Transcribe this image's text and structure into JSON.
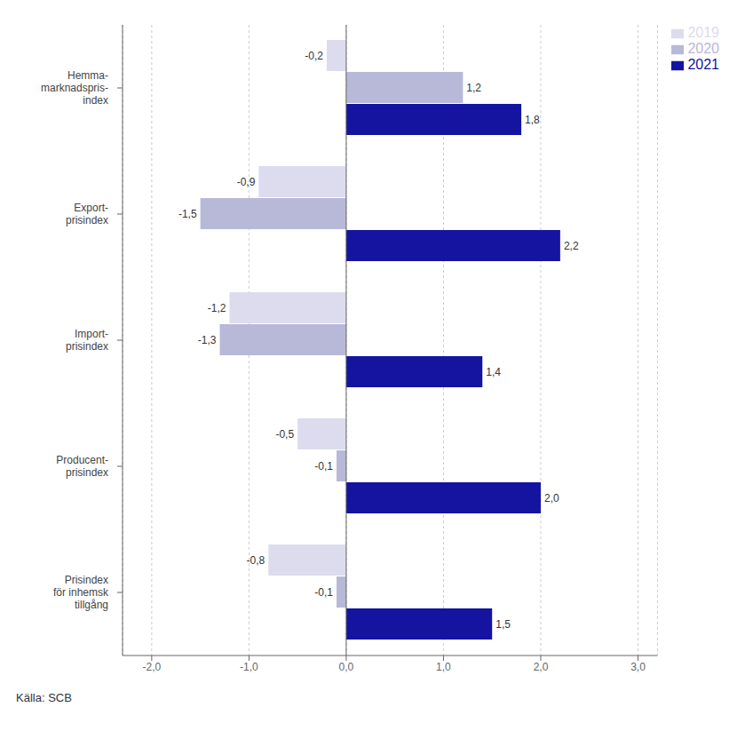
{
  "chart_data": {
    "type": "bar",
    "orientation": "horizontal",
    "categories": [
      "Hemma-\nmarknadspris-\nindex",
      "Export-\nprisindex",
      "Import-\nprisindex",
      "Producent-\nprisindex",
      "Prisindex\nför inhemsk\ntillgång"
    ],
    "series": [
      {
        "name": "2019",
        "color": "#dcdcee",
        "values": [
          -0.2,
          -0.9,
          -1.2,
          -0.5,
          -0.8
        ],
        "value_labels": [
          "-0,2",
          "-0,9",
          "-1,2",
          "-0,5",
          "-0,8"
        ]
      },
      {
        "name": "2020",
        "color": "#b8b8d8",
        "values": [
          1.2,
          -1.5,
          -1.3,
          -0.1,
          -0.1
        ],
        "value_labels": [
          "1,2",
          "-1,5",
          "-1,3",
          "-0,1",
          "-0,1"
        ]
      },
      {
        "name": "2021",
        "color": "#1414a0",
        "values": [
          1.8,
          2.2,
          1.4,
          2.0,
          1.5
        ],
        "value_labels": [
          "1,8",
          "2,2",
          "1,4",
          "2,0",
          "1,5"
        ]
      }
    ],
    "xlim": [
      -2.3,
      3.2
    ],
    "xticks": [
      {
        "value": -2.0,
        "label": "-2,0"
      },
      {
        "value": -1.0,
        "label": "-1,0"
      },
      {
        "value": 0.0,
        "label": "0,0"
      },
      {
        "value": 1.0,
        "label": "1,0"
      },
      {
        "value": 2.0,
        "label": "2,0"
      },
      {
        "value": 3.0,
        "label": "3,0"
      }
    ],
    "grid": true,
    "legend": "right",
    "data_labels": true,
    "annotations": [
      "Källa: SCB"
    ]
  }
}
